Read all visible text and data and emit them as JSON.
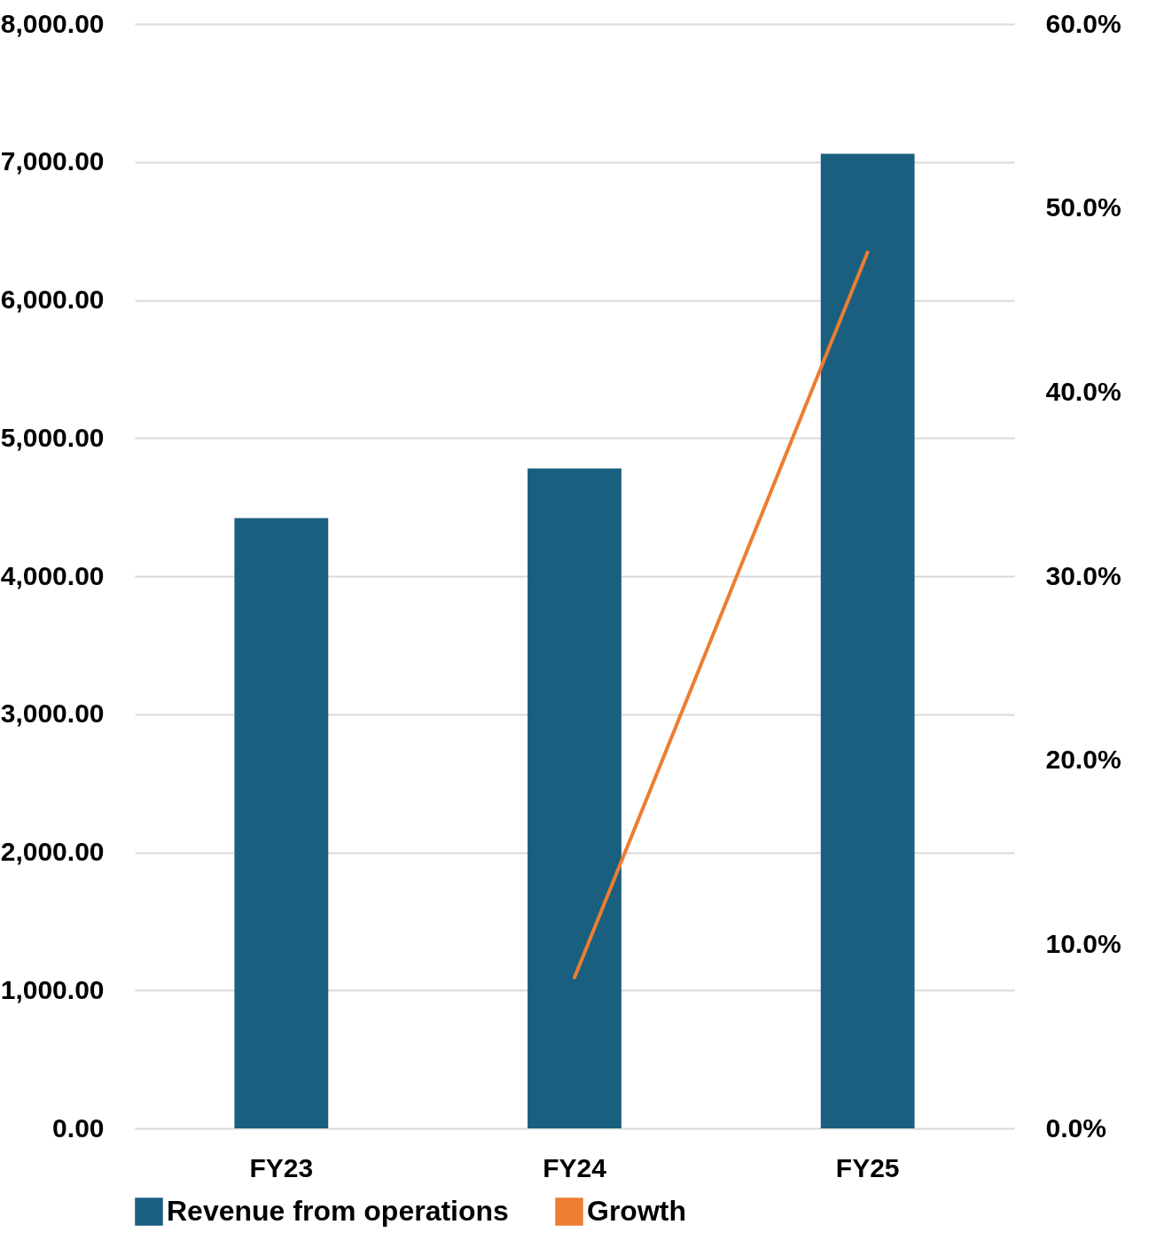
{
  "chart_data": {
    "type": "bar",
    "categories": [
      "FY23",
      "FY24",
      "FY25"
    ],
    "series": [
      {
        "name": "Revenue from operations",
        "color": "#1a5f80",
        "values": [
          4420,
          4780,
          7060
        ]
      },
      {
        "name": "Growth",
        "type": "line",
        "axis": "y2",
        "color": "#ed7d31",
        "values": [
          null,
          8.2,
          47.6
        ]
      }
    ],
    "ylim": [
      0,
      8000
    ],
    "yticks": [
      {
        "value": 0,
        "label": "0.00"
      },
      {
        "value": 1000,
        "label": "1,000.00"
      },
      {
        "value": 2000,
        "label": "2,000.00"
      },
      {
        "value": 3000,
        "label": "3,000.00"
      },
      {
        "value": 4000,
        "label": "4,000.00"
      },
      {
        "value": 5000,
        "label": "5,000.00"
      },
      {
        "value": 6000,
        "label": "6,000.00"
      },
      {
        "value": 7000,
        "label": "7,000.00"
      },
      {
        "value": 8000,
        "label": "8,000.00"
      }
    ],
    "y2lim": [
      0,
      60
    ],
    "y2ticks": [
      {
        "value": 0,
        "label": "0.0%"
      },
      {
        "value": 10,
        "label": "10.0%"
      },
      {
        "value": 20,
        "label": "20.0%"
      },
      {
        "value": 30,
        "label": "30.0%"
      },
      {
        "value": 40,
        "label": "40.0%"
      },
      {
        "value": 50,
        "label": "50.0%"
      },
      {
        "value": 60,
        "label": "60.0%"
      }
    ],
    "grid": "y",
    "legend": "bottom"
  }
}
